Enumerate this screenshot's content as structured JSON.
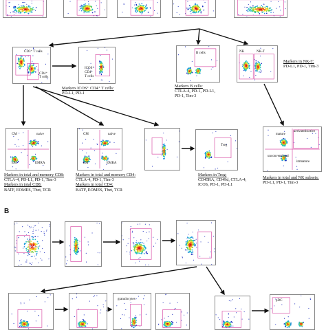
{
  "colors": {
    "gate": "#d94fa6",
    "arrow": "#111111",
    "density": [
      "#1e2fbf",
      "#1f8fe0",
      "#20c0c0",
      "#7ad24a",
      "#f4e02a",
      "#f06a1c",
      "#d2141e"
    ]
  },
  "panel_a": {
    "cd3": {
      "label": "CD3⁺ T cells"
    },
    "cd4": {
      "label": "CD4⁺ T cells"
    },
    "icos": {
      "line1": "ICOS⁺",
      "line2": "CD4⁺",
      "line3": "T cells"
    },
    "bcells": {
      "label": "B cells"
    },
    "nk": {
      "label_nk": "NK",
      "label_nkt": "NK-T"
    },
    "cm1": {
      "cm": "CM",
      "naive": "naive",
      "em": "EM",
      "emra": "EMRA"
    },
    "cm2": {
      "cm": "CM",
      "naive": "naive",
      "em": "EM",
      "emra": "EMRA"
    },
    "treg": {
      "label": "Treg"
    },
    "nksub": {
      "mature": "mature",
      "act": "activated/active",
      "unc": "unconventional",
      "imm": "immature"
    },
    "captions": {
      "icos": {
        "title": "Markers ICOS⁺ CD4⁺ T cells:",
        "values": "PD-L1, PD-1"
      },
      "bcells": {
        "title": "Markers B cells:",
        "values": [
          "CTLA-4, PD-1, PD-L1,",
          "PD-1, Tim-3"
        ]
      },
      "nkt": {
        "title": "Markers in NK-T:",
        "values": "PD-L1, PD-1, Tim-3"
      },
      "cd8": {
        "title": "Markers in total and memory CD8:",
        "values": [
          "CTLA-4, PD-L1, PD-1, Tim-3",
          "Markers in total CD8:",
          "BATF, EOMES, Tbet, TCR"
        ]
      },
      "cd4m": {
        "title": "Markers in total and memory CD4:",
        "values": [
          "CTLA-4, PD-1, Tim-3",
          "Markers in total CD4:",
          "BATF, EOMES, Tbet, TCR"
        ]
      },
      "treg": {
        "title": "Markers in Treg:",
        "values": [
          "CD45RA, CD49d, CTLA-4,",
          "ICOS, PD-1, PD-L1"
        ]
      },
      "nksub": {
        "title": "Markers in total and NK subsets:",
        "values": "PD-L1, PD-1, Tim-3"
      }
    }
  },
  "panel_b": {
    "letter": "B",
    "granulocytes": "granulocytes",
    "pdc": "pDC"
  }
}
